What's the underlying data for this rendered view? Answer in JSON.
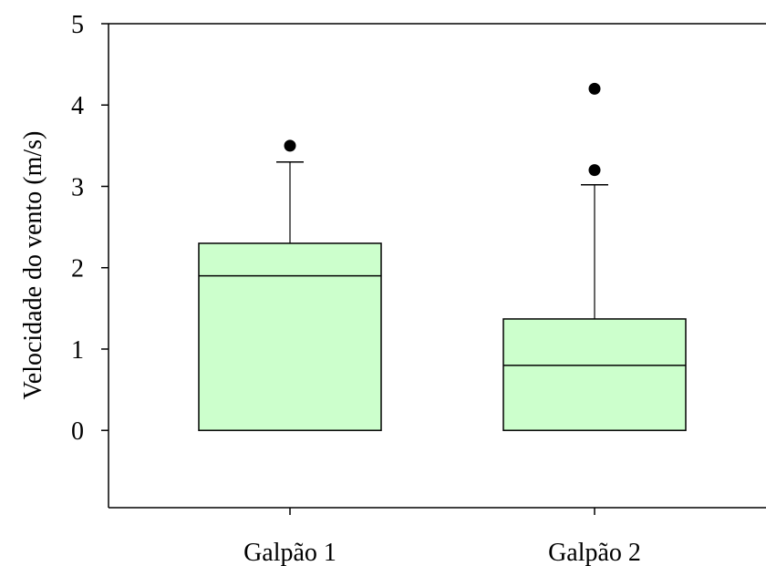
{
  "chart_data": {
    "type": "box",
    "title": "",
    "xlabel": "",
    "ylabel": "Velocidade do vento (m/s)",
    "ylim": [
      -0.95,
      5
    ],
    "yticks": [
      0,
      1,
      2,
      3,
      4,
      5
    ],
    "grid": false,
    "box_color": "#ccffcc",
    "categories": [
      "Galpão 1",
      "Galpão 2"
    ],
    "boxes": [
      {
        "category": "Galpão 1",
        "min": 0,
        "q1": 0,
        "median": 1.9,
        "q3": 2.3,
        "whisker_low": 0,
        "whisker_high": 3.3,
        "outliers": [
          3.5
        ]
      },
      {
        "category": "Galpão 2",
        "min": 0,
        "q1": 0,
        "median": 0.8,
        "q3": 1.37,
        "whisker_low": 0,
        "whisker_high": 3.02,
        "outliers": [
          3.2,
          4.2
        ]
      }
    ]
  }
}
